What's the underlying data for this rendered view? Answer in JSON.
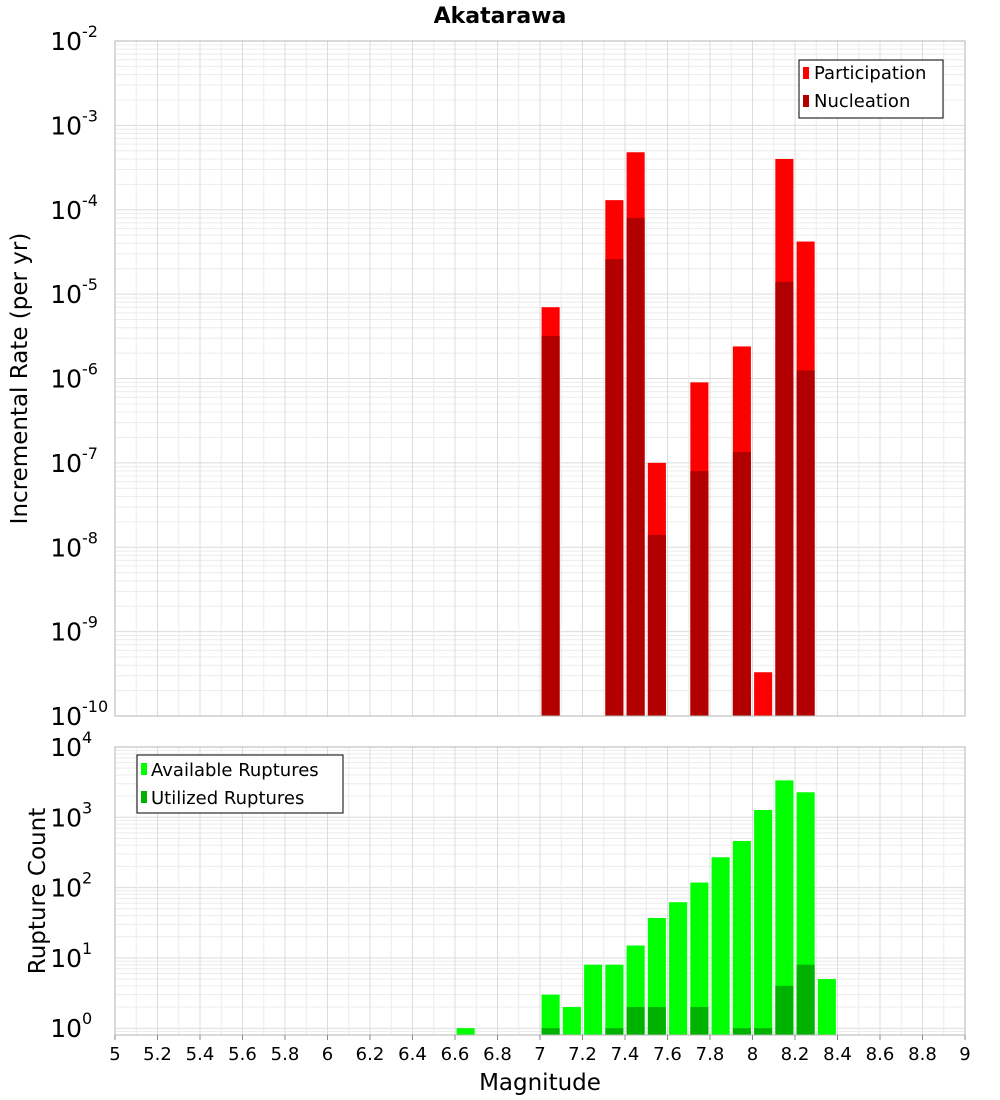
{
  "chart_data": [
    {
      "type": "bar",
      "title": "Akatarawa",
      "xlabel": "",
      "ylabel": "Incremental Rate (per yr)",
      "yscale": "log",
      "ylim": [
        1e-10,
        0.01
      ],
      "xlim": [
        5,
        9
      ],
      "grid": true,
      "legend_position": "top-right",
      "y_tick_base": "10",
      "y_tick_exponents": [
        "-10",
        "-9",
        "-8",
        "-7",
        "-6",
        "-5",
        "-4",
        "-3",
        "-2"
      ],
      "legend": [
        "Participation",
        "Nucleation"
      ],
      "colors": {
        "Participation": "#ff0000",
        "Nucleation": "#b20000"
      },
      "series": [
        {
          "name": "Participation",
          "x": [
            7.05,
            7.35,
            7.45,
            7.55,
            7.75,
            7.95,
            8.05,
            8.15,
            8.25
          ],
          "values": [
            7e-06,
            0.00013,
            0.00048,
            1e-07,
            9e-07,
            2.4e-06,
            3.3e-10,
            0.0004,
            4.2e-05
          ]
        },
        {
          "name": "Nucleation",
          "x": [
            7.05,
            7.35,
            7.45,
            7.55,
            7.75,
            7.95,
            8.15,
            8.25
          ],
          "values": [
            3.2e-06,
            2.6e-05,
            8e-05,
            1.4e-08,
            8e-08,
            1.35e-07,
            1.4e-05,
            1.25e-06
          ]
        }
      ]
    },
    {
      "type": "bar",
      "title": "",
      "xlabel": "Magnitude",
      "ylabel": "Rupture Count",
      "yscale": "log",
      "ylim": [
        0.8,
        10000
      ],
      "xlim": [
        5,
        9
      ],
      "grid": true,
      "legend_position": "top-left",
      "x_ticks": [
        "5",
        "5.2",
        "5.4",
        "5.6",
        "5.8",
        "6",
        "6.2",
        "6.4",
        "6.6",
        "6.8",
        "7",
        "7.2",
        "7.4",
        "7.6",
        "7.8",
        "8",
        "8.2",
        "8.4",
        "8.6",
        "8.8",
        "9"
      ],
      "y_tick_base": "10",
      "y_tick_exponents": [
        "0",
        "1",
        "2",
        "3",
        "4"
      ],
      "legend": [
        "Available Ruptures",
        "Utilized Ruptures"
      ],
      "colors": {
        "Available Ruptures": "#00ff00",
        "Utilized Ruptures": "#00b200"
      },
      "series": [
        {
          "name": "Available Ruptures",
          "x": [
            6.65,
            7.05,
            7.15,
            7.25,
            7.35,
            7.45,
            7.55,
            7.65,
            7.75,
            7.85,
            7.95,
            8.05,
            8.15,
            8.25,
            8.35
          ],
          "values": [
            1,
            3,
            2,
            8,
            8,
            15,
            37,
            62,
            118,
            270,
            460,
            1270,
            3350,
            2270,
            5
          ]
        },
        {
          "name": "Utilized Ruptures",
          "x": [
            7.05,
            7.35,
            7.45,
            7.55,
            7.75,
            7.95,
            8.05,
            8.15,
            8.25
          ],
          "values": [
            1,
            1,
            2,
            2,
            2,
            1,
            1,
            4,
            8
          ]
        }
      ]
    }
  ]
}
